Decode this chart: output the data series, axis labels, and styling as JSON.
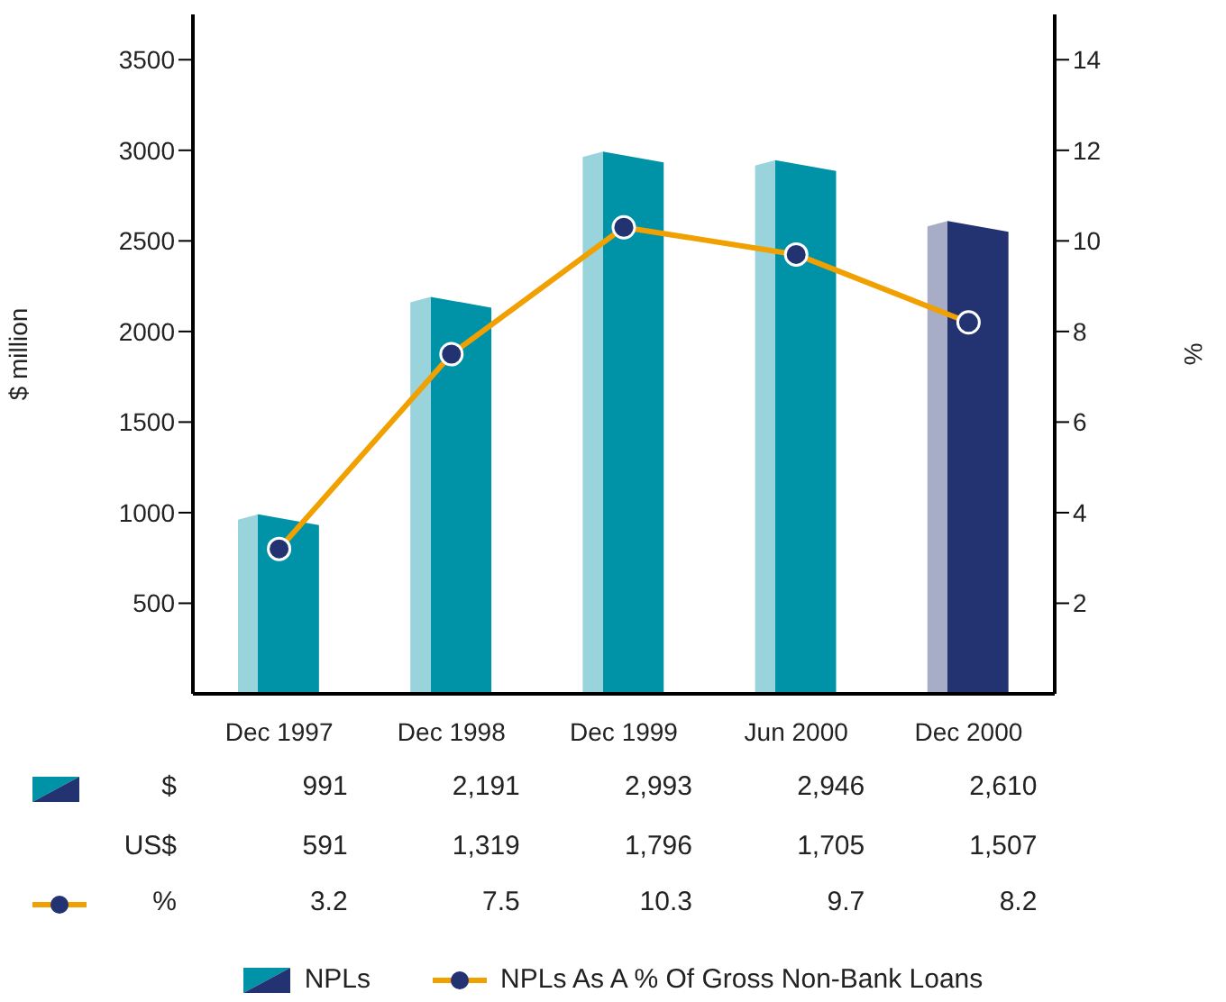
{
  "chart_data": {
    "type": "bar",
    "categories": [
      "Dec 1997",
      "Dec 1998",
      "Dec 1999",
      "Jun 2000",
      "Dec 2000"
    ],
    "ylabel": "$ million",
    "y2label": "%",
    "ylim": [
      0,
      3750
    ],
    "yticks": [
      500,
      1000,
      1500,
      2000,
      2500,
      3000,
      3500
    ],
    "y2lim": [
      0,
      15
    ],
    "y2ticks": [
      2,
      4,
      6,
      8,
      10,
      12,
      14
    ],
    "series": [
      {
        "name": "NPLs",
        "color": "#0093a8",
        "colors": [
          "#0093a8",
          "#0093a8",
          "#0093a8",
          "#0093a8",
          "#233372"
        ],
        "values": [
          991,
          2191,
          2993,
          2946,
          2610
        ],
        "value_labels": [
          "991",
          "2,191",
          "2,993",
          "2,946",
          "2,610"
        ]
      },
      {
        "name": "NPLs As A % Of Gross Non-Bank Loans",
        "type": "line",
        "axis": "y2",
        "color": "#f0a000",
        "marker": "circle",
        "line_style": "solid",
        "values": [
          3.2,
          7.5,
          10.3,
          9.7,
          8.2
        ],
        "value_labels": [
          "3.2",
          "7.5",
          "10.3",
          "9.7",
          "8.2"
        ]
      }
    ],
    "annotations": [
      "$",
      "US$",
      "591",
      "1,319",
      "1,796",
      "1,705",
      "1,507",
      "%"
    ],
    "legend": "bottom"
  }
}
